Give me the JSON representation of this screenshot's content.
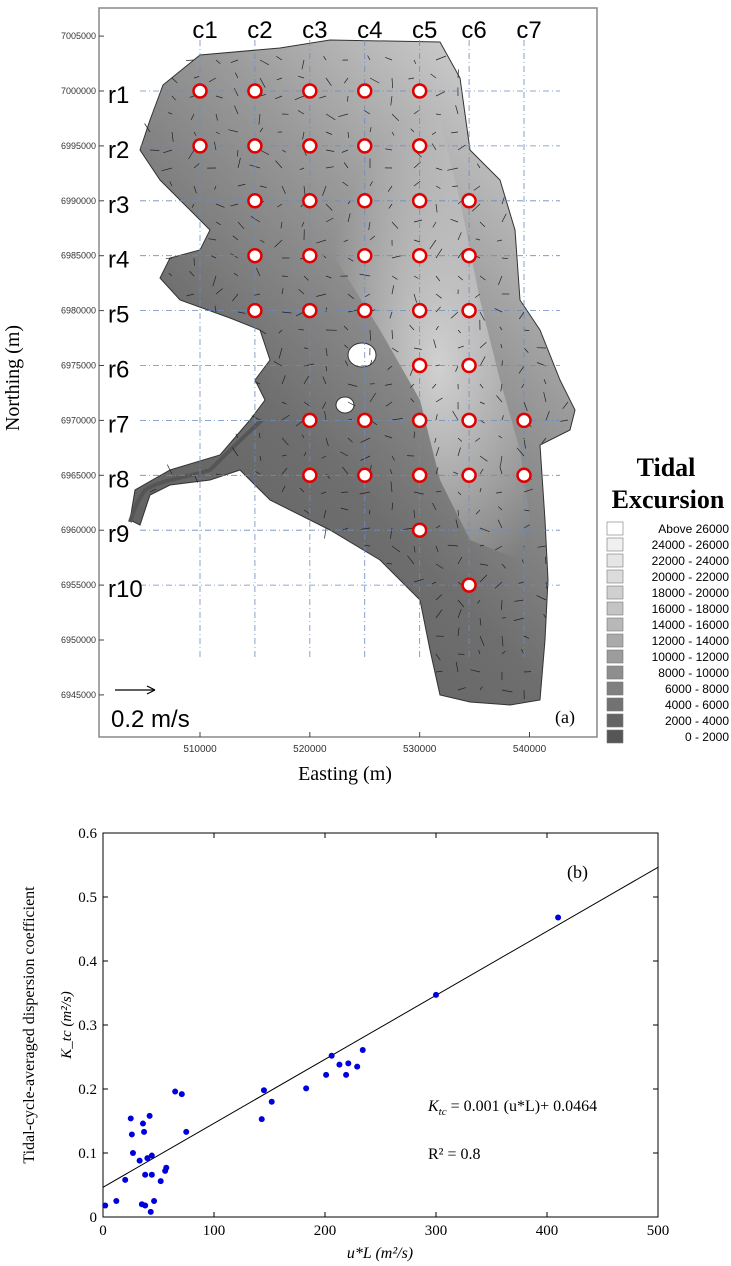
{
  "chart_data": [
    {
      "type": "heatmap",
      "panel_label": "(a)",
      "xlabel": "Easting (m)",
      "ylabel": "Northing (m)",
      "xlim": [
        491000,
        552000
      ],
      "ylim": [
        6941000,
        7008500
      ],
      "x_ticks": [
        "510000",
        "520000",
        "530000",
        "540000"
      ],
      "y_ticks": [
        "6945000",
        "6950000",
        "6955000",
        "6960000",
        "6965000",
        "6970000",
        "6975000",
        "6980000",
        "6985000",
        "6990000",
        "6995000",
        "7000000",
        "7005000"
      ],
      "grid": {
        "columns": [
          {
            "label": "c1",
            "easting": 510000
          },
          {
            "label": "c2",
            "easting": 515000
          },
          {
            "label": "c3",
            "easting": 520000
          },
          {
            "label": "c4",
            "easting": 525000
          },
          {
            "label": "c5",
            "easting": 530000
          },
          {
            "label": "c6",
            "easting": 534500
          },
          {
            "label": "c7",
            "easting": 539500
          }
        ],
        "rows": [
          {
            "label": "r1",
            "northing": 7000000
          },
          {
            "label": "r2",
            "northing": 6995000
          },
          {
            "label": "r3",
            "northing": 6990000
          },
          {
            "label": "r4",
            "northing": 6985000
          },
          {
            "label": "r5",
            "northing": 6980000
          },
          {
            "label": "r6",
            "northing": 6975000
          },
          {
            "label": "r7",
            "northing": 6970000
          },
          {
            "label": "r8",
            "northing": 6965000
          },
          {
            "label": "r9",
            "northing": 6960000
          },
          {
            "label": "r10",
            "northing": 6955000
          }
        ]
      },
      "stations": [
        {
          "col": "c1",
          "row": "r1"
        },
        {
          "col": "c2",
          "row": "r1"
        },
        {
          "col": "c3",
          "row": "r1"
        },
        {
          "col": "c4",
          "row": "r1"
        },
        {
          "col": "c5",
          "row": "r1"
        },
        {
          "col": "c1",
          "row": "r2"
        },
        {
          "col": "c2",
          "row": "r2"
        },
        {
          "col": "c3",
          "row": "r2"
        },
        {
          "col": "c4",
          "row": "r2"
        },
        {
          "col": "c5",
          "row": "r2"
        },
        {
          "col": "c2",
          "row": "r3"
        },
        {
          "col": "c3",
          "row": "r3"
        },
        {
          "col": "c4",
          "row": "r3"
        },
        {
          "col": "c5",
          "row": "r3"
        },
        {
          "col": "c6",
          "row": "r3"
        },
        {
          "col": "c2",
          "row": "r4"
        },
        {
          "col": "c3",
          "row": "r4"
        },
        {
          "col": "c4",
          "row": "r4"
        },
        {
          "col": "c5",
          "row": "r4"
        },
        {
          "col": "c6",
          "row": "r4"
        },
        {
          "col": "c2",
          "row": "r5"
        },
        {
          "col": "c3",
          "row": "r5"
        },
        {
          "col": "c4",
          "row": "r5"
        },
        {
          "col": "c5",
          "row": "r5"
        },
        {
          "col": "c6",
          "row": "r5"
        },
        {
          "col": "c5",
          "row": "r6"
        },
        {
          "col": "c6",
          "row": "r6"
        },
        {
          "col": "c3",
          "row": "r7"
        },
        {
          "col": "c4",
          "row": "r7"
        },
        {
          "col": "c5",
          "row": "r7"
        },
        {
          "col": "c6",
          "row": "r7"
        },
        {
          "col": "c7",
          "row": "r7"
        },
        {
          "col": "c3",
          "row": "r8"
        },
        {
          "col": "c4",
          "row": "r8"
        },
        {
          "col": "c5",
          "row": "r8"
        },
        {
          "col": "c6",
          "row": "r8"
        },
        {
          "col": "c7",
          "row": "r8"
        },
        {
          "col": "c5",
          "row": "r9"
        },
        {
          "col": "c6",
          "row": "r10"
        }
      ],
      "velocity_scale_label": "0.2 m/s",
      "legend": {
        "title": [
          "Tidal",
          "Excursion"
        ],
        "placement": "right",
        "entries": [
          {
            "label": "Above  26000",
            "color": "#ffffff"
          },
          {
            "label": "24000 - 26000",
            "color": "#f0f0f0"
          },
          {
            "label": "22000 - 24000",
            "color": "#e6e6e6"
          },
          {
            "label": "20000 - 22000",
            "color": "#dcdcdc"
          },
          {
            "label": "18000 - 20000",
            "color": "#d0d0d0"
          },
          {
            "label": "16000 - 18000",
            "color": "#c4c4c4"
          },
          {
            "label": "14000 - 16000",
            "color": "#b8b8b8"
          },
          {
            "label": "12000 - 14000",
            "color": "#aaaaaa"
          },
          {
            "label": "10000 - 12000",
            "color": "#9c9c9c"
          },
          {
            "label": "8000 - 10000",
            "color": "#8e8e8e"
          },
          {
            "label": "6000 -  8000",
            "color": "#808080"
          },
          {
            "label": "4000 -  6000",
            "color": "#727272"
          },
          {
            "label": "2000 -  4000",
            "color": "#646464"
          },
          {
            "label": "0 -  2000",
            "color": "#565656"
          }
        ]
      },
      "colors": {
        "station_fill": "#ffffff",
        "station_stroke": "#e00000",
        "gridline": "#6b8cc0",
        "water_base": "#6a6a6a"
      }
    },
    {
      "type": "scatter",
      "panel_label": "(b)",
      "xlabel": "u*L (m²/s)",
      "ylabel": "Tidal-cycle-averaged dispersion coefficient",
      "ylabel_symbol": "K_tc (m²/s)",
      "xlim": [
        0,
        500
      ],
      "ylim": [
        0,
        0.6
      ],
      "x_ticks": [
        "0",
        "100",
        "200",
        "300",
        "400",
        "500"
      ],
      "y_ticks": [
        "0",
        "0.1",
        "0.2",
        "0.3",
        "0.4",
        "0.5",
        "0.6"
      ],
      "grid": false,
      "series": [
        {
          "marker_color": "#0000dd",
          "points": [
            {
              "x": 2,
              "y": 0.018
            },
            {
              "x": 12,
              "y": 0.025
            },
            {
              "x": 20,
              "y": 0.058
            },
            {
              "x": 25,
              "y": 0.154
            },
            {
              "x": 26,
              "y": 0.129
            },
            {
              "x": 27,
              "y": 0.1
            },
            {
              "x": 33,
              "y": 0.088
            },
            {
              "x": 35,
              "y": 0.02
            },
            {
              "x": 36,
              "y": 0.146
            },
            {
              "x": 37,
              "y": 0.133
            },
            {
              "x": 38,
              "y": 0.018
            },
            {
              "x": 38,
              "y": 0.066
            },
            {
              "x": 40,
              "y": 0.092
            },
            {
              "x": 42,
              "y": 0.158
            },
            {
              "x": 43,
              "y": 0.008
            },
            {
              "x": 44,
              "y": 0.096
            },
            {
              "x": 44,
              "y": 0.066
            },
            {
              "x": 46,
              "y": 0.025
            },
            {
              "x": 52,
              "y": 0.056
            },
            {
              "x": 56,
              "y": 0.072
            },
            {
              "x": 57,
              "y": 0.077
            },
            {
              "x": 65,
              "y": 0.196
            },
            {
              "x": 71,
              "y": 0.192
            },
            {
              "x": 75,
              "y": 0.133
            },
            {
              "x": 143,
              "y": 0.153
            },
            {
              "x": 145,
              "y": 0.198
            },
            {
              "x": 152,
              "y": 0.18
            },
            {
              "x": 183,
              "y": 0.201
            },
            {
              "x": 201,
              "y": 0.222
            },
            {
              "x": 206,
              "y": 0.252
            },
            {
              "x": 213,
              "y": 0.238
            },
            {
              "x": 219,
              "y": 0.222
            },
            {
              "x": 221,
              "y": 0.24
            },
            {
              "x": 229,
              "y": 0.235
            },
            {
              "x": 234,
              "y": 0.261
            },
            {
              "x": 300,
              "y": 0.347
            },
            {
              "x": 410,
              "y": 0.468
            }
          ]
        }
      ],
      "fit_line": {
        "slope": 0.001,
        "intercept": 0.0464,
        "color": "#000000"
      },
      "annotations": {
        "equation_symbol": "K",
        "equation_subscript": "tc",
        "equation_rest": " = 0.001 (u*L)+ 0.0464",
        "r_squared": "R² = 0.8"
      }
    }
  ]
}
